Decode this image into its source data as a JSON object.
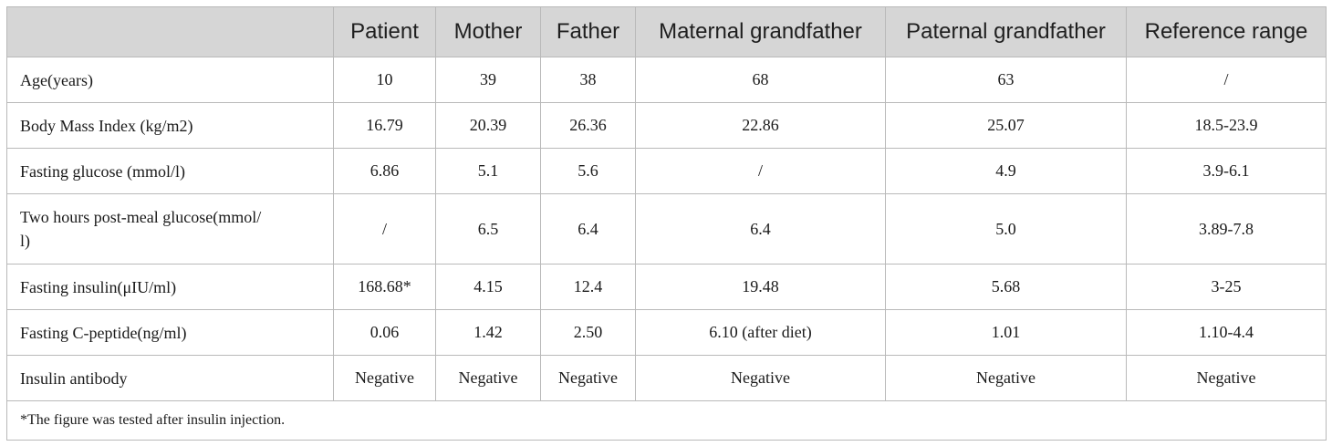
{
  "table": {
    "headers": [
      "",
      "Patient",
      "Mother",
      "Father",
      "Maternal grandfather",
      "Paternal grandfather",
      "Reference range"
    ],
    "rows": [
      {
        "label": "Age(years)",
        "values": [
          "10",
          "39",
          "38",
          "68",
          "63",
          "/"
        ]
      },
      {
        "label": "Body Mass Index (kg/m2)",
        "values": [
          "16.79",
          "20.39",
          "26.36",
          "22.86",
          "25.07",
          "18.5-23.9"
        ]
      },
      {
        "label": "Fasting glucose (mmol/l)",
        "values": [
          "6.86",
          "5.1",
          "5.6",
          "/",
          "4.9",
          "3.9-6.1"
        ]
      },
      {
        "label_line1": "Two hours post-meal glucose(mmol/",
        "label_line2": "l)",
        "values": [
          "/",
          "6.5",
          "6.4",
          "6.4",
          "5.0",
          "3.89-7.8"
        ]
      },
      {
        "label": "Fasting insulin(μIU/ml)",
        "values": [
          "168.68*",
          "4.15",
          "12.4",
          "19.48",
          "5.68",
          "3-25"
        ]
      },
      {
        "label": "Fasting C-peptide(ng/ml)",
        "values": [
          "0.06",
          "1.42",
          "2.50",
          "6.10 (after diet)",
          "1.01",
          "1.10-4.4"
        ]
      },
      {
        "label": "Insulin antibody",
        "values": [
          "Negative",
          "Negative",
          "Negative",
          "Negative",
          "Negative",
          "Negative"
        ]
      }
    ],
    "footnote": "*The figure was tested after insulin injection."
  }
}
